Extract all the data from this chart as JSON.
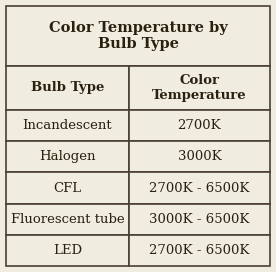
{
  "title": "Color Temperature by\nBulb Type",
  "col_headers": [
    "Bulb Type",
    "Color\nTemperature"
  ],
  "rows": [
    [
      "Incandescent",
      "2700K"
    ],
    [
      "Halogen",
      "3000K"
    ],
    [
      "CFL",
      "2700K - 6500K"
    ],
    [
      "Fluorescent tube",
      "3000K - 6500K"
    ],
    [
      "LED",
      "2700K - 6500K"
    ]
  ],
  "bg_color": "#f0ede0",
  "header_bg": "#f0ede0",
  "row_bg": "#f0ede0",
  "border_color": "#4a3f30",
  "title_fontsize": 10.5,
  "header_fontsize": 9.5,
  "cell_fontsize": 9.5,
  "text_color": "#2a2010",
  "fig_bg": "#f0ede0",
  "col_split": 0.465
}
